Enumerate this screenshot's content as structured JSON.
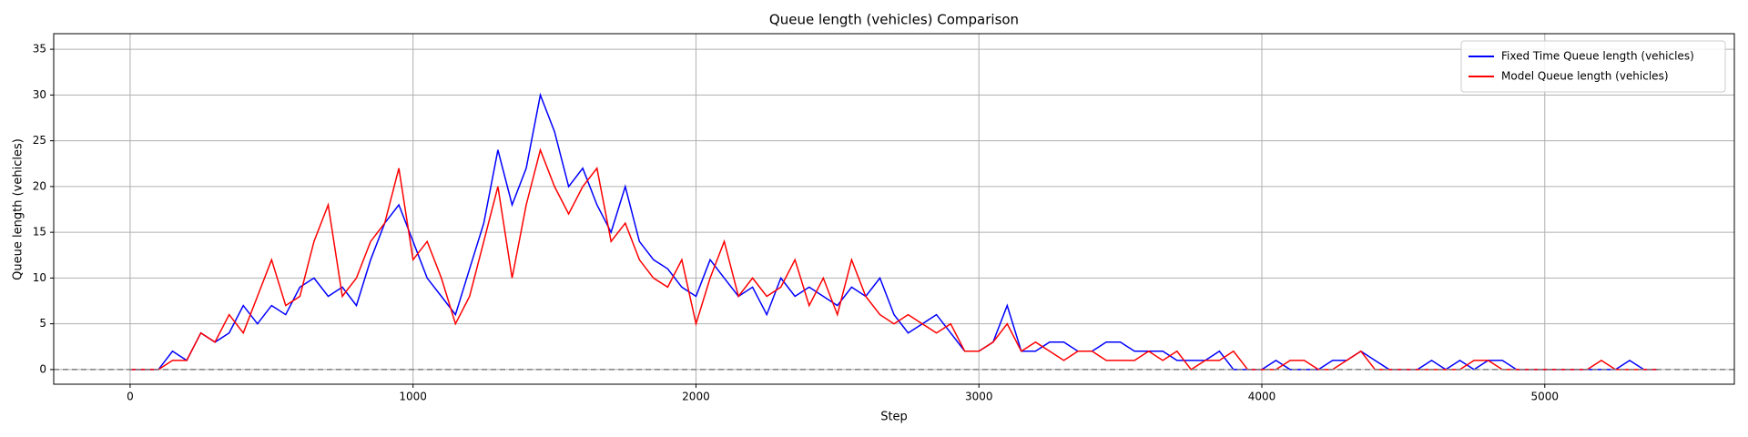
{
  "chart_data": {
    "type": "line",
    "title": "Queue length (vehicles) Comparison",
    "x_label": "Step",
    "y_label": "Queue length (vehicles)",
    "x": [
      0,
      50,
      100,
      150,
      200,
      250,
      300,
      350,
      400,
      450,
      500,
      550,
      600,
      650,
      700,
      750,
      800,
      850,
      900,
      950,
      1000,
      1050,
      1100,
      1150,
      1200,
      1250,
      1300,
      1350,
      1400,
      1450,
      1500,
      1550,
      1600,
      1650,
      1700,
      1750,
      1800,
      1850,
      1900,
      1950,
      2000,
      2050,
      2100,
      2150,
      2200,
      2250,
      2300,
      2350,
      2400,
      2450,
      2500,
      2550,
      2600,
      2650,
      2700,
      2750,
      2800,
      2850,
      2900,
      2950,
      3000,
      3050,
      3100,
      3150,
      3200,
      3250,
      3300,
      3350,
      3400,
      3450,
      3500,
      3550,
      3600,
      3650,
      3700,
      3750,
      3800,
      3850,
      3900,
      3950,
      4000,
      4050,
      4100,
      4150,
      4200,
      4250,
      4300,
      4350,
      4400,
      4450,
      4500,
      4550,
      4600,
      4650,
      4700,
      4750,
      4800,
      4850,
      4900,
      4950,
      5000,
      5050,
      5100,
      5150,
      5200,
      5250,
      5300,
      5350,
      5400
    ],
    "series": [
      {
        "name": "Fixed Time Queue length (vehicles)",
        "color": "#0000ff",
        "values": [
          0,
          0,
          0,
          2,
          1,
          4,
          3,
          4,
          7,
          5,
          7,
          6,
          9,
          10,
          8,
          9,
          7,
          12,
          16,
          18,
          14,
          10,
          8,
          6,
          11,
          16,
          24,
          18,
          22,
          30,
          26,
          20,
          22,
          18,
          15,
          20,
          14,
          12,
          11,
          9,
          8,
          12,
          10,
          8,
          9,
          6,
          10,
          8,
          9,
          8,
          7,
          9,
          8,
          10,
          6,
          4,
          5,
          6,
          4,
          2,
          2,
          3,
          7,
          2,
          2,
          3,
          3,
          2,
          2,
          3,
          3,
          2,
          2,
          2,
          1,
          1,
          1,
          2,
          0,
          0,
          0,
          1,
          0,
          0,
          0,
          1,
          1,
          2,
          1,
          0,
          0,
          0,
          1,
          0,
          1,
          0,
          1,
          1,
          0,
          0,
          0,
          0,
          0,
          0,
          0,
          0,
          1,
          0,
          0
        ]
      },
      {
        "name": "Model Queue length (vehicles)",
        "color": "#ff0000",
        "values": [
          0,
          0,
          0,
          1,
          1,
          4,
          3,
          6,
          4,
          8,
          12,
          7,
          8,
          14,
          18,
          8,
          10,
          14,
          16,
          22,
          12,
          14,
          10,
          5,
          8,
          14,
          20,
          10,
          18,
          24,
          20,
          17,
          20,
          22,
          14,
          16,
          12,
          10,
          9,
          12,
          5,
          10,
          14,
          8,
          10,
          8,
          9,
          12,
          7,
          10,
          6,
          12,
          8,
          6,
          5,
          6,
          5,
          4,
          5,
          2,
          2,
          3,
          5,
          2,
          3,
          2,
          1,
          2,
          2,
          1,
          1,
          1,
          2,
          1,
          2,
          0,
          1,
          1,
          2,
          0,
          0,
          0,
          1,
          1,
          0,
          0,
          1,
          2,
          0,
          0,
          0,
          0,
          0,
          0,
          0,
          1,
          1,
          0,
          0,
          0,
          0,
          0,
          0,
          0,
          1,
          0,
          0,
          0,
          0
        ]
      }
    ],
    "hline": 0,
    "xlim": [
      -270,
      5670
    ],
    "xticks": [
      0,
      1000,
      2000,
      3000,
      4000,
      5000
    ],
    "ylim": [
      -1.6,
      36.7
    ],
    "yticks": [
      0,
      5,
      10,
      15,
      20,
      25,
      30,
      35
    ],
    "grid": true,
    "legend": "upper right"
  }
}
